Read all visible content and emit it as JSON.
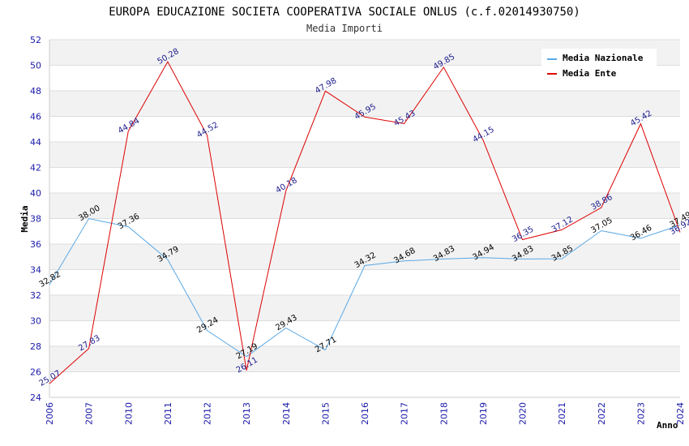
{
  "chart_data": {
    "type": "line",
    "title": "EUROPA EDUCAZIONE SOCIETA COOPERATIVA SOCIALE ONLUS (c.f.02014930750)",
    "subtitle": "Media Importi",
    "xlabel": "Anno",
    "ylabel": "Media",
    "categories": [
      "2006",
      "2007",
      "2010",
      "2011",
      "2012",
      "2013",
      "2014",
      "2015",
      "2016",
      "2017",
      "2018",
      "2019",
      "2020",
      "2021",
      "2022",
      "2023",
      "2024"
    ],
    "ylim": [
      24,
      52
    ],
    "yticks": [
      "24",
      "26",
      "28",
      "30",
      "32",
      "34",
      "36",
      "38",
      "40",
      "42",
      "44",
      "46",
      "48",
      "50",
      "52"
    ],
    "grid": true,
    "legend_position": "top-right",
    "series": [
      {
        "name": "Media Nazionale",
        "color": "#5aa9e6",
        "label_color": "#000000",
        "values": [
          32.82,
          38.0,
          37.36,
          34.79,
          29.24,
          27.19,
          29.43,
          27.71,
          34.32,
          34.68,
          34.83,
          34.94,
          34.83,
          34.85,
          37.05,
          36.46,
          37.49
        ],
        "labels": [
          "32.82",
          "38.00",
          "37.36",
          "34.79",
          "29.24",
          "27.19",
          "29.43",
          "27.71",
          "34.32",
          "34.68",
          "34.83",
          "34.94",
          "34.83",
          "34.85",
          "37.05",
          "36.46",
          "37.49"
        ]
      },
      {
        "name": "Media Ente",
        "color": "#dd0000",
        "label_color": "#1a1a8c",
        "values": [
          25.07,
          27.83,
          44.84,
          50.28,
          44.52,
          26.11,
          40.18,
          47.98,
          45.95,
          45.43,
          49.85,
          44.15,
          36.35,
          37.12,
          38.86,
          45.42,
          36.92
        ],
        "labels": [
          "25.07",
          "27.83",
          "44.84",
          "50.28",
          "44.52",
          "26.11",
          "40.18",
          "47.98",
          "45.95",
          "45.43",
          "49.85",
          "44.15",
          "36.35",
          "37.12",
          "38.86",
          "45.42",
          "36.92"
        ]
      }
    ],
    "colors": {
      "band": "#f2f2f2",
      "gridline": "#dddddd",
      "axis_tick_text": "#1a1aaa"
    }
  }
}
